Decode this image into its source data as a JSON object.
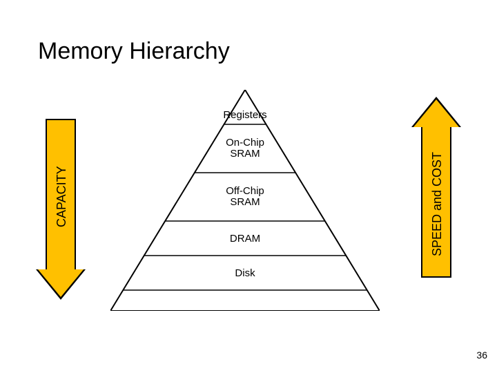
{
  "title": "Memory Hierarchy",
  "left_arrow_label": "CAPACITY",
  "right_arrow_label": "SPEED and COST",
  "page_number": "36",
  "arrow_fill": "#ffc000",
  "stroke_color": "#000000",
  "background_color": "#ffffff",
  "pyramid": {
    "fill": "#ffffff",
    "stroke": "#000000",
    "title_font": "Arial",
    "label_font": "Comic Sans MS",
    "title_fontsize": 34,
    "label_fontsize": 15,
    "arrow_label_fontsize": 18,
    "levels": [
      {
        "label": "Registers"
      },
      {
        "label": "On-Chip\nSRAM"
      },
      {
        "label": "Off-Chip\nSRAM"
      },
      {
        "label": "DRAM"
      },
      {
        "label": "Disk"
      }
    ]
  }
}
